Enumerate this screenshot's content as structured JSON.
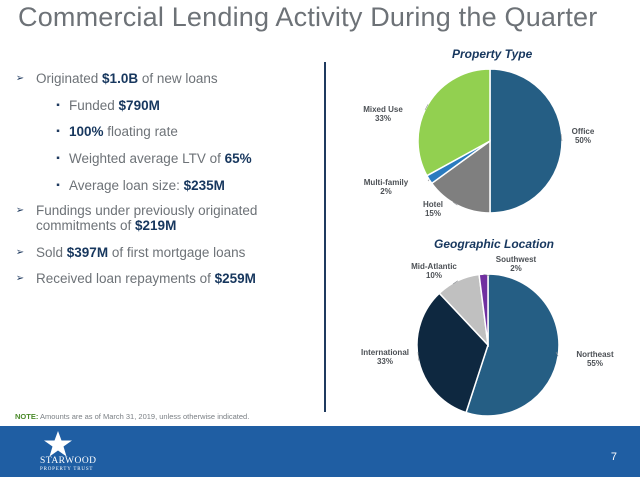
{
  "title": "Commercial Lending Activity During the Quarter",
  "bullets": [
    {
      "level": 1,
      "pre": "Originated ",
      "bold": "$1.0B",
      "post": " of new loans"
    },
    {
      "level": 2,
      "pre": "Funded ",
      "bold": "$790M",
      "post": ""
    },
    {
      "level": 2,
      "pre": "",
      "bold": "100%",
      "post": " floating rate"
    },
    {
      "level": 2,
      "pre": "Weighted average LTV of ",
      "bold": "65%",
      "post": ""
    },
    {
      "level": 2,
      "pre": "Average loan size:  ",
      "bold": "$235M",
      "post": ""
    },
    {
      "level": 1,
      "pre": "Fundings under previously originated",
      "bold": "",
      "post": ""
    },
    {
      "level": 0,
      "pre": "commitments of ",
      "bold": "$219M",
      "post": ""
    },
    {
      "level": 1,
      "pre": "Sold ",
      "bold": "$397M",
      "post": " of first mortgage loans"
    },
    {
      "level": 1,
      "pre": "Received loan repayments of ",
      "bold": "$259M",
      "post": ""
    }
  ],
  "note": {
    "label": "NOTE:",
    "text": " Amounts are as of March 31, 2019, unless otherwise indicated."
  },
  "footer": {
    "page": "7",
    "logo_name": "STARWOOD",
    "logo_sub": "PROPERTY TRUST",
    "color": "#1f5ea3"
  },
  "chart_data": [
    {
      "type": "pie",
      "title": "Property Type",
      "slices": [
        {
          "label": "Office",
          "value": 50,
          "display": "50%",
          "color": "#255e84"
        },
        {
          "label": "Hotel",
          "value": 15,
          "display": "15%",
          "color": "#7f7f7f"
        },
        {
          "label": "Multi-family",
          "value": 2,
          "display": "2%",
          "color": "#2a7bbf"
        },
        {
          "label": "Mixed Use",
          "value": 33,
          "display": "33%",
          "color": "#92d050"
        }
      ]
    },
    {
      "type": "pie",
      "title": "Geographic Location",
      "slices": [
        {
          "label": "Northeast",
          "value": 55,
          "display": "55%",
          "color": "#255e84"
        },
        {
          "label": "International",
          "value": 33,
          "display": "33%",
          "color": "#0e2840"
        },
        {
          "label": "Mid-Atlantic",
          "value": 10,
          "display": "10%",
          "color": "#c0c0c0"
        },
        {
          "label": "Southwest",
          "value": 2,
          "display": "2%",
          "color": "#7030a0"
        }
      ]
    }
  ]
}
